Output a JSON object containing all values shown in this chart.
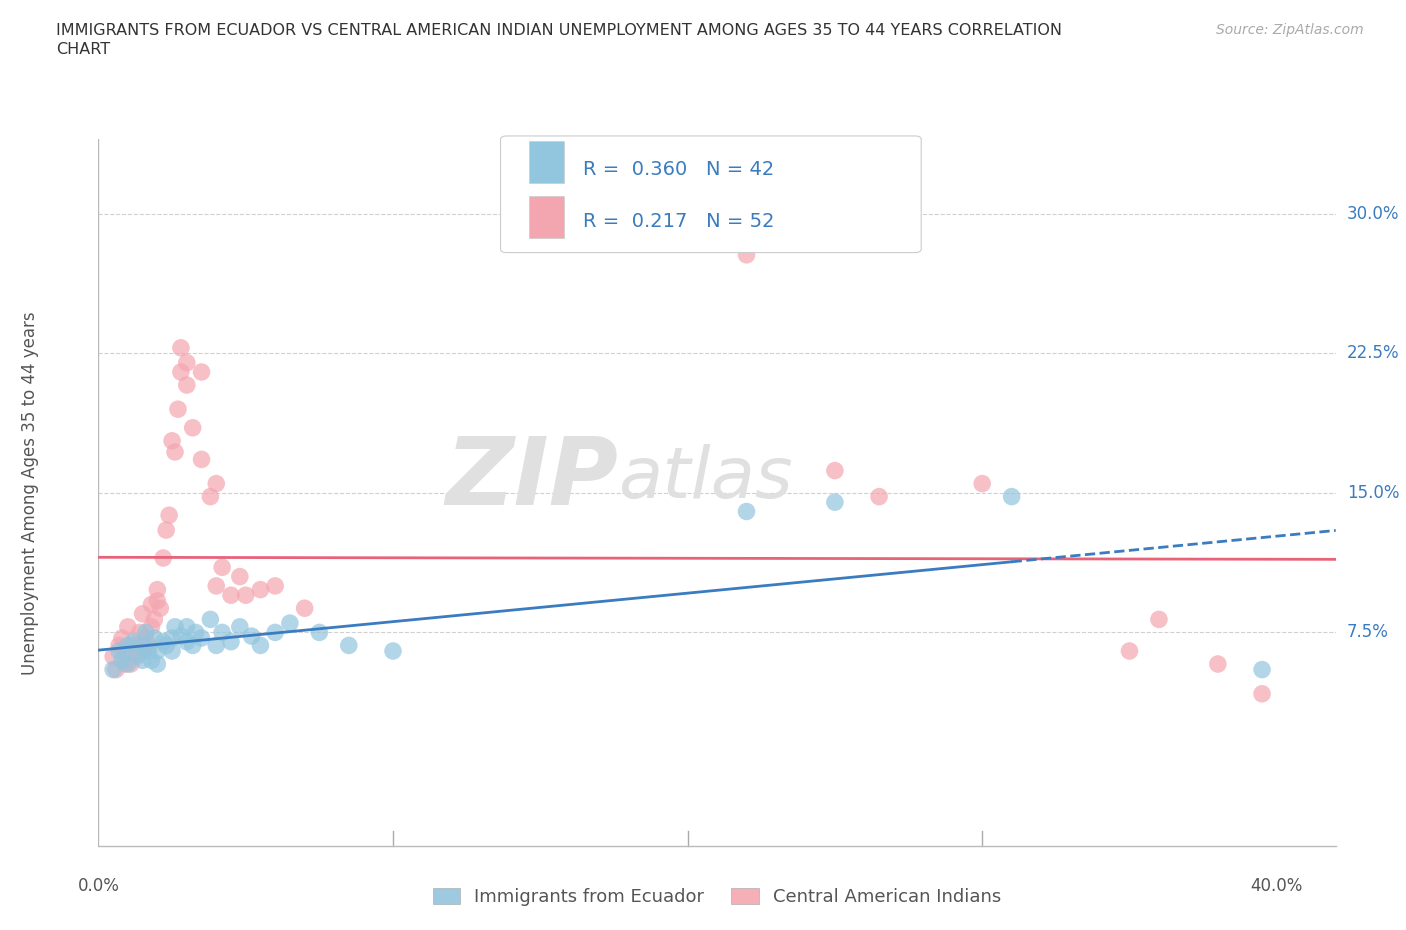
{
  "title_line1": "IMMIGRANTS FROM ECUADOR VS CENTRAL AMERICAN INDIAN UNEMPLOYMENT AMONG AGES 35 TO 44 YEARS CORRELATION",
  "title_line2": "CHART",
  "source": "Source: ZipAtlas.com",
  "ylabel": "Unemployment Among Ages 35 to 44 years",
  "xlim": [
    0.0,
    0.42
  ],
  "ylim": [
    -0.04,
    0.34
  ],
  "watermark_line1": "ZIP",
  "watermark_line2": "atlas",
  "ecuador_R": 0.36,
  "ecuador_N": 42,
  "ca_indian_R": 0.217,
  "ca_indian_N": 52,
  "ecuador_color": "#92c5de",
  "ca_indian_color": "#f4a6b0",
  "ecuador_line_color": "#3a7cbf",
  "ca_indian_line_color": "#e8637a",
  "ecuador_scatter": [
    [
      0.005,
      0.055
    ],
    [
      0.007,
      0.065
    ],
    [
      0.008,
      0.06
    ],
    [
      0.01,
      0.068
    ],
    [
      0.01,
      0.058
    ],
    [
      0.012,
      0.07
    ],
    [
      0.013,
      0.063
    ],
    [
      0.015,
      0.068
    ],
    [
      0.015,
      0.06
    ],
    [
      0.016,
      0.075
    ],
    [
      0.017,
      0.065
    ],
    [
      0.018,
      0.06
    ],
    [
      0.019,
      0.072
    ],
    [
      0.02,
      0.065
    ],
    [
      0.02,
      0.058
    ],
    [
      0.022,
      0.07
    ],
    [
      0.023,
      0.068
    ],
    [
      0.025,
      0.065
    ],
    [
      0.025,
      0.072
    ],
    [
      0.026,
      0.078
    ],
    [
      0.028,
      0.073
    ],
    [
      0.03,
      0.07
    ],
    [
      0.03,
      0.078
    ],
    [
      0.032,
      0.068
    ],
    [
      0.033,
      0.075
    ],
    [
      0.035,
      0.072
    ],
    [
      0.038,
      0.082
    ],
    [
      0.04,
      0.068
    ],
    [
      0.042,
      0.075
    ],
    [
      0.045,
      0.07
    ],
    [
      0.048,
      0.078
    ],
    [
      0.052,
      0.073
    ],
    [
      0.055,
      0.068
    ],
    [
      0.06,
      0.075
    ],
    [
      0.065,
      0.08
    ],
    [
      0.075,
      0.075
    ],
    [
      0.085,
      0.068
    ],
    [
      0.1,
      0.065
    ],
    [
      0.22,
      0.14
    ],
    [
      0.25,
      0.145
    ],
    [
      0.31,
      0.148
    ],
    [
      0.395,
      0.055
    ]
  ],
  "ca_indian_scatter": [
    [
      0.005,
      0.062
    ],
    [
      0.006,
      0.055
    ],
    [
      0.007,
      0.068
    ],
    [
      0.008,
      0.072
    ],
    [
      0.009,
      0.058
    ],
    [
      0.01,
      0.065
    ],
    [
      0.01,
      0.078
    ],
    [
      0.011,
      0.058
    ],
    [
      0.012,
      0.068
    ],
    [
      0.013,
      0.062
    ],
    [
      0.014,
      0.075
    ],
    [
      0.015,
      0.065
    ],
    [
      0.015,
      0.085
    ],
    [
      0.016,
      0.072
    ],
    [
      0.017,
      0.068
    ],
    [
      0.018,
      0.078
    ],
    [
      0.018,
      0.09
    ],
    [
      0.019,
      0.082
    ],
    [
      0.02,
      0.092
    ],
    [
      0.02,
      0.098
    ],
    [
      0.021,
      0.088
    ],
    [
      0.022,
      0.115
    ],
    [
      0.023,
      0.13
    ],
    [
      0.024,
      0.138
    ],
    [
      0.025,
      0.178
    ],
    [
      0.026,
      0.172
    ],
    [
      0.027,
      0.195
    ],
    [
      0.028,
      0.215
    ],
    [
      0.028,
      0.228
    ],
    [
      0.03,
      0.208
    ],
    [
      0.03,
      0.22
    ],
    [
      0.032,
      0.185
    ],
    [
      0.035,
      0.168
    ],
    [
      0.035,
      0.215
    ],
    [
      0.038,
      0.148
    ],
    [
      0.04,
      0.155
    ],
    [
      0.04,
      0.1
    ],
    [
      0.042,
      0.11
    ],
    [
      0.045,
      0.095
    ],
    [
      0.048,
      0.105
    ],
    [
      0.05,
      0.095
    ],
    [
      0.055,
      0.098
    ],
    [
      0.06,
      0.1
    ],
    [
      0.07,
      0.088
    ],
    [
      0.22,
      0.278
    ],
    [
      0.25,
      0.162
    ],
    [
      0.265,
      0.148
    ],
    [
      0.3,
      0.155
    ],
    [
      0.35,
      0.065
    ],
    [
      0.36,
      0.082
    ],
    [
      0.38,
      0.058
    ],
    [
      0.395,
      0.042
    ]
  ],
  "background_color": "#ffffff",
  "grid_color": "#d0d0d0",
  "ytick_vals": [
    0.0,
    0.075,
    0.15,
    0.225,
    0.3
  ],
  "ytick_labels": [
    "",
    "7.5%",
    "15.0%",
    "22.5%",
    "30.0%"
  ],
  "xtick_positions": [
    0.0,
    0.1,
    0.2,
    0.3,
    0.4
  ]
}
